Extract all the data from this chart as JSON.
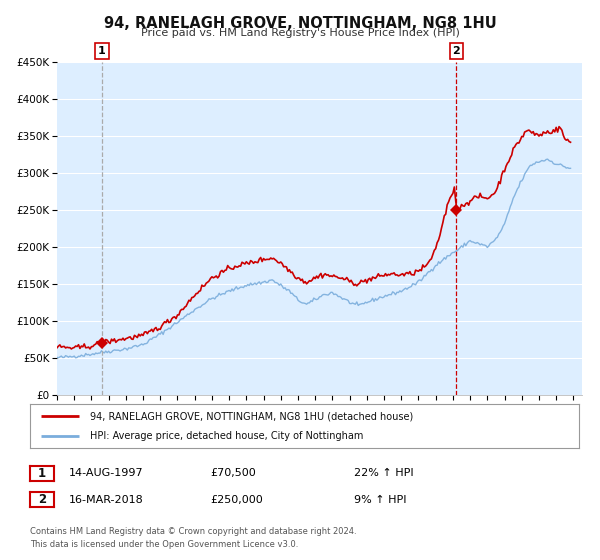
{
  "title": "94, RANELAGH GROVE, NOTTINGHAM, NG8 1HU",
  "subtitle": "Price paid vs. HM Land Registry's House Price Index (HPI)",
  "legend_line1": "94, RANELAGH GROVE, NOTTINGHAM, NG8 1HU (detached house)",
  "legend_line2": "HPI: Average price, detached house, City of Nottingham",
  "sale1_date": "14-AUG-1997",
  "sale1_price": 70500,
  "sale1_price_str": "£70,500",
  "sale1_hpi": "22% ↑ HPI",
  "sale2_date": "16-MAR-2018",
  "sale2_price": 250000,
  "sale2_price_str": "£250,000",
  "sale2_hpi": "9% ↑ HPI",
  "footer1": "Contains HM Land Registry data © Crown copyright and database right 2024.",
  "footer2": "This data is licensed under the Open Government Licence v3.0.",
  "hpi_color": "#7aaddc",
  "price_color": "#cc0000",
  "marker_color": "#cc0000",
  "vline1_color": "#999999",
  "vline2_color": "#cc0000",
  "bg_color": "#ddeeff",
  "grid_color": "#ffffff",
  "ylim": [
    0,
    450000
  ],
  "xlim_start": 1995.0,
  "xlim_end": 2025.5,
  "yticks": [
    0,
    50000,
    100000,
    150000,
    200000,
    250000,
    300000,
    350000,
    400000,
    450000
  ],
  "sale1_x": 1997.617,
  "sale2_x": 2018.205
}
